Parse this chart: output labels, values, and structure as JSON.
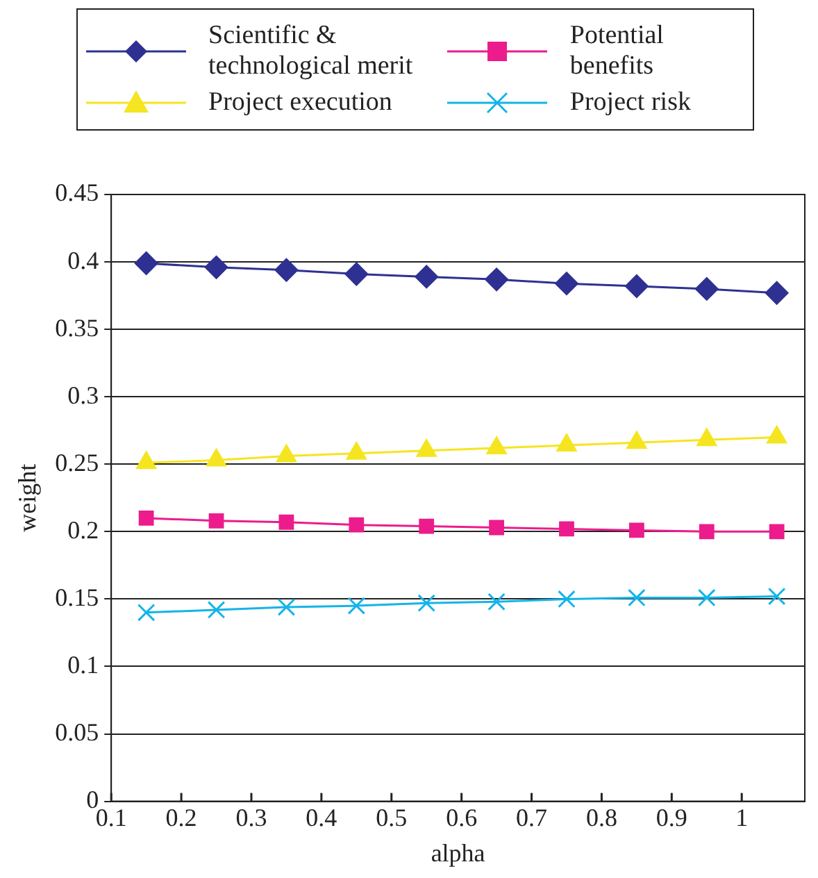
{
  "chart_data": {
    "type": "line",
    "xlabel": "alpha",
    "ylabel": "weight",
    "x": [
      0.15,
      0.25,
      0.35,
      0.45,
      0.55,
      0.65,
      0.75,
      0.85,
      0.95,
      1.05
    ],
    "series": [
      {
        "name": "Scientific & technological merit",
        "color": "#2e3192",
        "marker": "diamond",
        "values": [
          0.399,
          0.396,
          0.394,
          0.391,
          0.389,
          0.387,
          0.384,
          0.382,
          0.38,
          0.377
        ]
      },
      {
        "name": "Potential benefits",
        "color": "#ec1c8c",
        "marker": "square",
        "values": [
          0.21,
          0.208,
          0.207,
          0.205,
          0.204,
          0.203,
          0.202,
          0.201,
          0.2,
          0.2
        ]
      },
      {
        "name": "Project execution",
        "color": "#f5e520",
        "marker": "triangle",
        "values": [
          0.251,
          0.253,
          0.256,
          0.258,
          0.26,
          0.262,
          0.264,
          0.266,
          0.268,
          0.27
        ]
      },
      {
        "name": "Project risk",
        "color": "#14b4e8",
        "marker": "cross",
        "values": [
          0.14,
          0.142,
          0.144,
          0.145,
          0.147,
          0.148,
          0.15,
          0.151,
          0.151,
          0.152
        ]
      }
    ],
    "xlim": [
      0.1,
      1.09
    ],
    "xticks": [
      0.1,
      0.2,
      0.3,
      0.4,
      0.5,
      0.6,
      0.7,
      0.8,
      0.9,
      1
    ],
    "ylim": [
      0,
      0.45
    ],
    "yticks": [
      0,
      0.05,
      0.1,
      0.15,
      0.2,
      0.25,
      0.3,
      0.35,
      0.4,
      0.45
    ],
    "grid": "y",
    "legend": "top",
    "line_style": "solid"
  }
}
